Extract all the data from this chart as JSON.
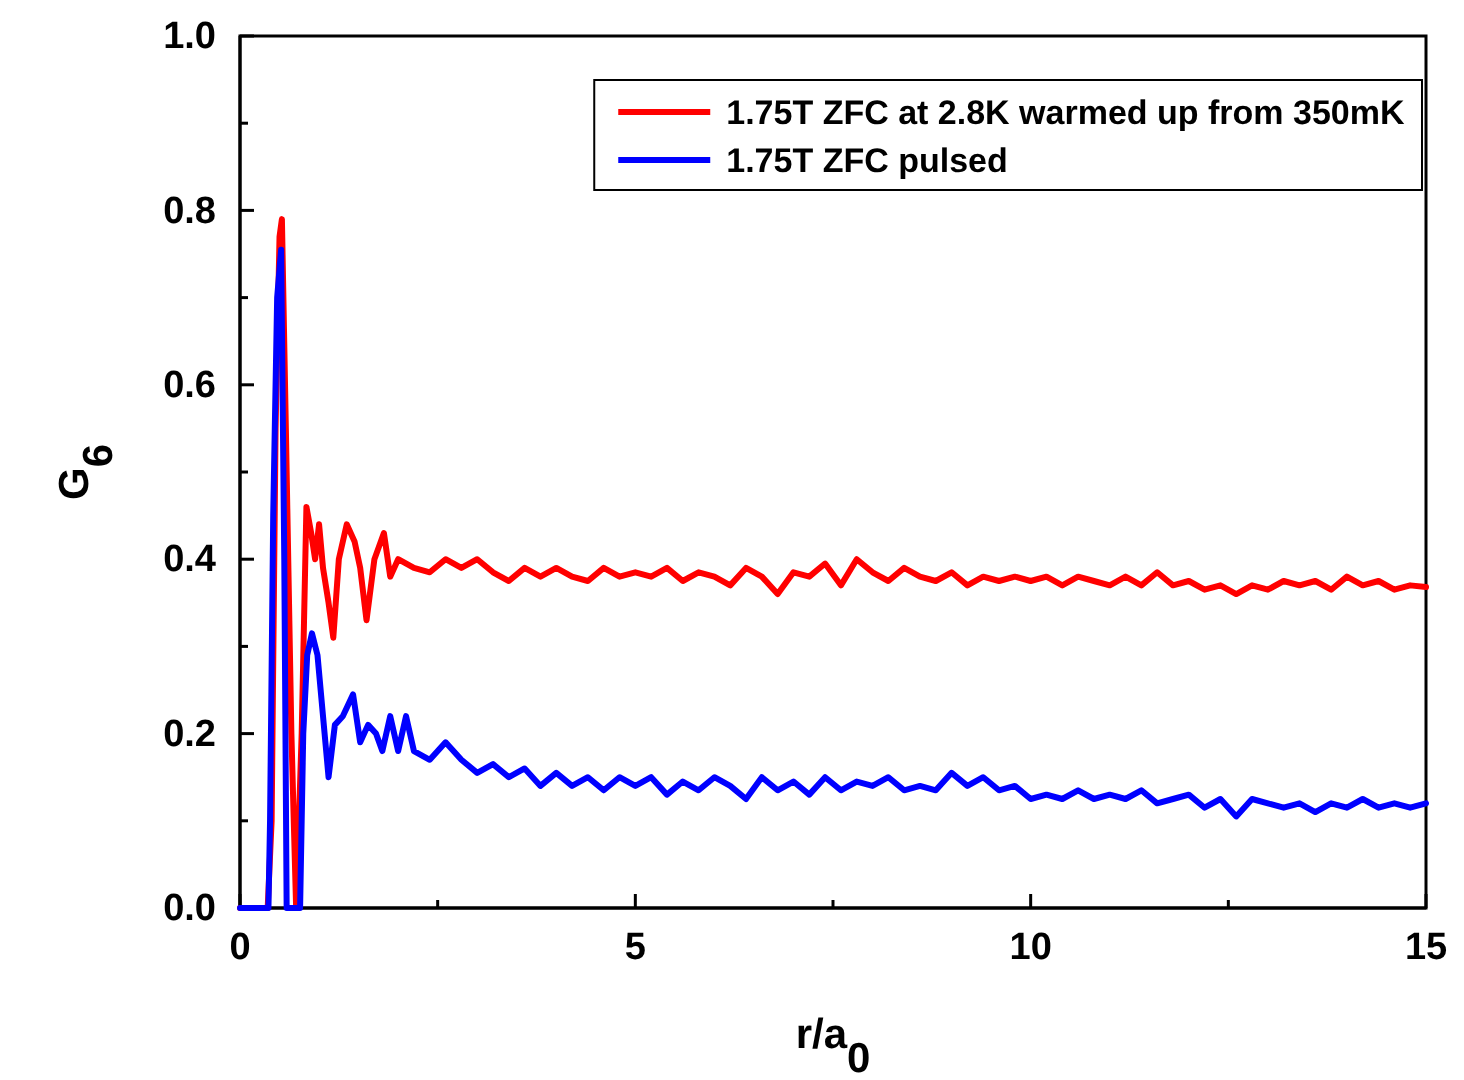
{
  "chart_data": {
    "type": "line",
    "xlabel": "r/a$_{0}$",
    "ylabel": "G$_{6}$",
    "xlim": [
      0,
      15
    ],
    "xticks": [
      0,
      {
        "value": 2.5,
        "label": null
      },
      5,
      {
        "value": 7.5,
        "label": null
      },
      10,
      {
        "value": 12.5,
        "label": null
      },
      15
    ],
    "ylim": [
      0,
      1
    ],
    "yticks": [
      "0.0",
      {
        "value": 0.1,
        "label": null
      },
      0.2,
      {
        "value": 0.3,
        "label": null
      },
      0.4,
      {
        "value": 0.5,
        "label": null
      },
      0.6,
      {
        "value": 0.7,
        "label": null
      },
      0.8,
      {
        "value": 0.9,
        "label": null
      },
      "1.0"
    ],
    "grid": false,
    "legend": "top right",
    "marker": "none",
    "line_style": "solid",
    "series": [
      {
        "name": "1.75T ZFC at 2.8K warmed up from 350mK",
        "color": "#ff0000",
        "x": [
          0,
          0.35,
          0.4,
          0.45,
          0.5,
          0.53,
          0.58,
          0.65,
          0.71,
          0.78,
          0.84,
          0.9,
          0.95,
          1.0,
          1.05,
          1.12,
          1.18,
          1.25,
          1.35,
          1.45,
          1.52,
          1.6,
          1.7,
          1.82,
          1.9,
          2.0,
          2.2,
          2.4,
          2.6,
          2.8,
          3.0,
          3.2,
          3.4,
          3.6,
          3.8,
          4.0,
          4.2,
          4.4,
          4.6,
          4.8,
          5.0,
          5.2,
          5.4,
          5.6,
          5.8,
          6.0,
          6.2,
          6.4,
          6.6,
          6.8,
          7.0,
          7.2,
          7.4,
          7.6,
          7.8,
          8.0,
          8.2,
          8.4,
          8.6,
          8.8,
          9.0,
          9.2,
          9.4,
          9.6,
          9.8,
          10.0,
          10.2,
          10.4,
          10.6,
          10.8,
          11.0,
          11.2,
          11.4,
          11.6,
          11.8,
          12.0,
          12.2,
          12.4,
          12.6,
          12.8,
          13.0,
          13.2,
          13.4,
          13.6,
          13.8,
          14.0,
          14.2,
          14.4,
          14.6,
          14.8,
          15.0
        ],
        "values": [
          0,
          0,
          0.1,
          0.55,
          0.77,
          0.79,
          0.55,
          0.2,
          0,
          0.2,
          0.46,
          0.43,
          0.4,
          0.44,
          0.39,
          0.35,
          0.31,
          0.4,
          0.44,
          0.42,
          0.39,
          0.33,
          0.4,
          0.43,
          0.38,
          0.4,
          0.39,
          0.385,
          0.4,
          0.39,
          0.4,
          0.385,
          0.375,
          0.39,
          0.38,
          0.39,
          0.38,
          0.375,
          0.39,
          0.38,
          0.385,
          0.38,
          0.39,
          0.375,
          0.385,
          0.38,
          0.37,
          0.39,
          0.38,
          0.36,
          0.385,
          0.38,
          0.395,
          0.37,
          0.4,
          0.385,
          0.375,
          0.39,
          0.38,
          0.375,
          0.385,
          0.37,
          0.38,
          0.375,
          0.38,
          0.375,
          0.38,
          0.37,
          0.38,
          0.375,
          0.37,
          0.38,
          0.37,
          0.385,
          0.37,
          0.375,
          0.365,
          0.37,
          0.36,
          0.37,
          0.365,
          0.375,
          0.37,
          0.375,
          0.365,
          0.38,
          0.37,
          0.375,
          0.365,
          0.37,
          0.368
        ]
      },
      {
        "name": "1.75T ZFC pulsed",
        "color": "#0000ff",
        "x": [
          0,
          0.36,
          0.38,
          0.42,
          0.47,
          0.52,
          0.56,
          0.59,
          0.76,
          0.8,
          0.85,
          0.91,
          0.98,
          1.05,
          1.12,
          1.2,
          1.3,
          1.43,
          1.52,
          1.62,
          1.72,
          1.8,
          1.9,
          2.0,
          2.1,
          2.2,
          2.4,
          2.6,
          2.8,
          3.0,
          3.2,
          3.4,
          3.6,
          3.8,
          4.0,
          4.2,
          4.4,
          4.6,
          4.8,
          5.0,
          5.2,
          5.4,
          5.6,
          5.8,
          6.0,
          6.2,
          6.4,
          6.6,
          6.8,
          7.0,
          7.2,
          7.4,
          7.6,
          7.8,
          8.0,
          8.2,
          8.4,
          8.6,
          8.8,
          9.0,
          9.2,
          9.4,
          9.6,
          9.8,
          10.0,
          10.2,
          10.4,
          10.6,
          10.8,
          11.0,
          11.2,
          11.4,
          11.6,
          11.8,
          12.0,
          12.2,
          12.4,
          12.6,
          12.8,
          13.0,
          13.2,
          13.4,
          13.6,
          13.8,
          14.0,
          14.2,
          14.4,
          14.6,
          14.8,
          15.0
        ],
        "values": [
          0,
          0,
          0.1,
          0.45,
          0.7,
          0.755,
          0.4,
          0,
          0,
          0.2,
          0.29,
          0.315,
          0.29,
          0.22,
          0.15,
          0.21,
          0.22,
          0.245,
          0.19,
          0.21,
          0.2,
          0.18,
          0.22,
          0.18,
          0.22,
          0.18,
          0.17,
          0.19,
          0.17,
          0.155,
          0.165,
          0.15,
          0.16,
          0.14,
          0.155,
          0.14,
          0.15,
          0.135,
          0.15,
          0.14,
          0.15,
          0.13,
          0.145,
          0.135,
          0.15,
          0.14,
          0.125,
          0.15,
          0.135,
          0.145,
          0.13,
          0.15,
          0.135,
          0.145,
          0.14,
          0.15,
          0.135,
          0.14,
          0.135,
          0.155,
          0.14,
          0.15,
          0.135,
          0.14,
          0.125,
          0.13,
          0.125,
          0.135,
          0.125,
          0.13,
          0.125,
          0.135,
          0.12,
          0.125,
          0.13,
          0.115,
          0.125,
          0.105,
          0.125,
          0.12,
          0.115,
          0.12,
          0.11,
          0.12,
          0.115,
          0.125,
          0.115,
          0.12,
          0.115,
          0.12
        ]
      }
    ]
  }
}
